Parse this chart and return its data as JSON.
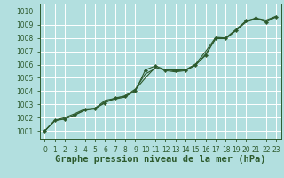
{
  "title": "Graphe pression niveau de la mer (hPa)",
  "bg_color": "#b2dfdf",
  "grid_color": "#ffffff",
  "line_color": "#2d5a2d",
  "marker_color": "#2d5a2d",
  "xlim": [
    -0.5,
    23.5
  ],
  "ylim": [
    1000.4,
    1010.6
  ],
  "yticks": [
    1001,
    1002,
    1003,
    1004,
    1005,
    1006,
    1007,
    1008,
    1009,
    1010
  ],
  "xticks": [
    0,
    1,
    2,
    3,
    4,
    5,
    6,
    7,
    8,
    9,
    10,
    11,
    12,
    13,
    14,
    15,
    16,
    17,
    18,
    19,
    20,
    21,
    22,
    23
  ],
  "series1_x": [
    0,
    1,
    2,
    3,
    4,
    5,
    6,
    7,
    8,
    9,
    10,
    11,
    12,
    13,
    14,
    15,
    16,
    17,
    18,
    19,
    20,
    21,
    22,
    23
  ],
  "series1_y": [
    1001.0,
    1001.8,
    1001.9,
    1002.2,
    1002.6,
    1002.7,
    1003.1,
    1003.5,
    1003.6,
    1004.0,
    1005.6,
    1005.9,
    1005.6,
    1005.6,
    1005.6,
    1006.0,
    1006.7,
    1008.0,
    1008.0,
    1008.6,
    1009.3,
    1009.5,
    1009.2,
    1009.6
  ],
  "series2_x": [
    0,
    1,
    2,
    3,
    4,
    5,
    6,
    7,
    8,
    9,
    10,
    11,
    12,
    13,
    14,
    15,
    16,
    17,
    18,
    19,
    20,
    21,
    22,
    23
  ],
  "series2_y": [
    1001.0,
    1001.8,
    1002.0,
    1002.3,
    1002.65,
    1002.7,
    1003.3,
    1003.45,
    1003.65,
    1004.15,
    1005.3,
    1005.7,
    1005.65,
    1005.5,
    1005.6,
    1006.05,
    1007.0,
    1008.05,
    1008.0,
    1008.65,
    1009.25,
    1009.5,
    1009.35,
    1009.65
  ],
  "series3_x": [
    0,
    1,
    2,
    3,
    4,
    5,
    6,
    7,
    8,
    9,
    10,
    11,
    12,
    13,
    14,
    15,
    16,
    17,
    18,
    19,
    20,
    21,
    22,
    23
  ],
  "series3_y": [
    1001.0,
    1001.75,
    1001.9,
    1002.2,
    1002.55,
    1002.65,
    1003.2,
    1003.4,
    1003.55,
    1004.1,
    1005.0,
    1005.8,
    1005.55,
    1005.45,
    1005.55,
    1005.95,
    1006.8,
    1007.95,
    1007.95,
    1008.55,
    1009.2,
    1009.45,
    1009.3,
    1009.6
  ],
  "title_color": "#2d5a2d",
  "title_fontsize": 7.5,
  "tick_fontsize": 5.5,
  "axis_color": "#2d5a2d"
}
